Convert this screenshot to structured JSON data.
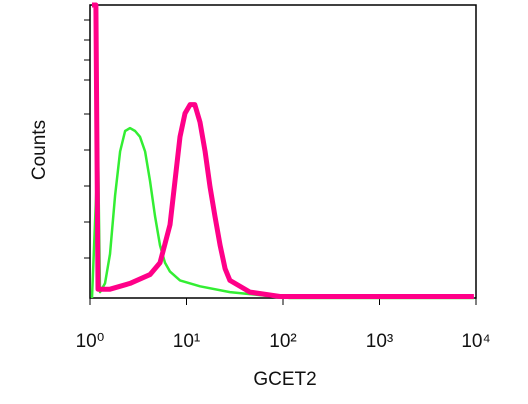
{
  "chart_data": {
    "type": "line",
    "x_label": "GCET2",
    "y_label": "Counts",
    "xscale": "log",
    "xlim": [
      1,
      10000
    ],
    "ylim": [
      0,
      100
    ],
    "xticks": [
      {
        "value": 1,
        "label": "10⁰"
      },
      {
        "value": 10,
        "label": "10¹"
      },
      {
        "value": 100,
        "label": "10²"
      },
      {
        "value": 1000,
        "label": "10³"
      },
      {
        "value": 10000,
        "label": "10⁴"
      }
    ],
    "series": [
      {
        "color": "#33ee33",
        "width": 2.5,
        "x": [
          1.05,
          1.21,
          1.27,
          1.43,
          1.61,
          1.82,
          2.05,
          2.31,
          2.6,
          2.93,
          3.3,
          3.72,
          4.19,
          4.72,
          5.31,
          5.99,
          6.75,
          8.56,
          13.8,
          28.2,
          57.8,
          118,
          9500
        ],
        "values": [
          0,
          51,
          2,
          5,
          15,
          35,
          50,
          57,
          58,
          57,
          55,
          50,
          40,
          28,
          18,
          12,
          9,
          6,
          4,
          2,
          1,
          0,
          0
        ]
      },
      {
        "color": "#ff0088",
        "width": 5,
        "x": [
          1.05,
          1.15,
          1.21,
          1.61,
          2.6,
          4.19,
          5.31,
          6.75,
          7.6,
          8.56,
          9.65,
          10.9,
          12.2,
          13.8,
          15.6,
          17.5,
          19.7,
          22.3,
          25.1,
          28.2,
          45.5,
          93.1,
          9500
        ],
        "values": [
          100,
          100,
          3,
          3,
          5,
          8,
          12,
          25,
          40,
          55,
          63,
          66,
          66,
          60,
          50,
          38,
          28,
          18,
          10,
          6,
          2,
          0.5,
          0.5
        ]
      }
    ]
  }
}
